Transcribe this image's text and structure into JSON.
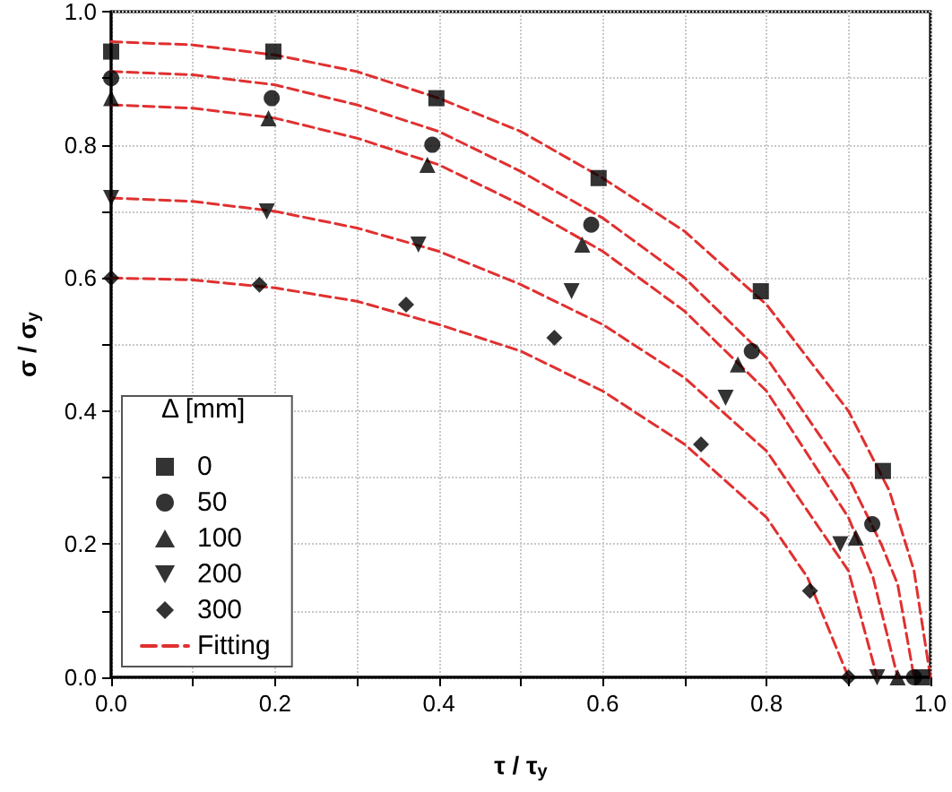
{
  "chart_data": {
    "type": "scatter",
    "xlabel": "τ / τ$_{y}$",
    "ylabel": "σ / σ$_{y}$",
    "legend_title": "Δ [mm]",
    "xlim": [
      0,
      1
    ],
    "ylim": [
      0,
      1
    ],
    "xticks": [
      {
        "value": 0,
        "label": "0.0"
      },
      0.2,
      0.4,
      0.6,
      0.8,
      {
        "value": 1,
        "label": "1.0"
      }
    ],
    "yticks": [
      {
        "value": 0,
        "label": "0.0"
      },
      0.2,
      0.4,
      0.6,
      0.8,
      {
        "value": 1,
        "label": "1.0"
      }
    ],
    "grid": true,
    "legend": "bottom left",
    "series": [
      {
        "name": "0",
        "color": "#000000",
        "marker": "square",
        "x": [
          0,
          0.198,
          0.397,
          0.595,
          0.793,
          0.942,
          0.99
        ],
        "values": [
          0.94,
          0.94,
          0.87,
          0.75,
          0.58,
          0.31,
          0
        ]
      },
      {
        "name": "50",
        "color": "#000000",
        "marker": "circle",
        "x": [
          0,
          0.196,
          0.392,
          0.586,
          0.782,
          0.929,
          0.98
        ],
        "values": [
          0.9,
          0.87,
          0.8,
          0.68,
          0.49,
          0.23,
          0
        ]
      },
      {
        "name": "100",
        "color": "#000000",
        "marker": "triangle",
        "x": [
          0,
          0.192,
          0.386,
          0.575,
          0.765,
          0.909,
          0.96
        ],
        "values": [
          0.87,
          0.84,
          0.77,
          0.65,
          0.47,
          0.21,
          0
        ]
      },
      {
        "name": "200",
        "color": "#000000",
        "marker": "triangle-down",
        "x": [
          0,
          0.19,
          0.375,
          0.562,
          0.75,
          0.89,
          0.935
        ],
        "values": [
          0.72,
          0.7,
          0.65,
          0.58,
          0.42,
          0.2,
          0
        ]
      },
      {
        "name": "300",
        "color": "#000000",
        "marker": "diamond",
        "x": [
          0,
          0.181,
          0.36,
          0.541,
          0.72,
          0.853,
          0.9
        ],
        "values": [
          0.6,
          0.59,
          0.56,
          0.51,
          0.35,
          0.13,
          0
        ]
      },
      {
        "name": "Fitting",
        "type": "line",
        "color": "#e03030",
        "line_style": "dashed",
        "marker": "none",
        "x": [
          0,
          0.1,
          0.2,
          0.3,
          0.4,
          0.5,
          0.6,
          0.7,
          0.8,
          0.9,
          0.95,
          0.98,
          1.0
        ],
        "values": [
          0.955,
          0.95,
          0.935,
          0.91,
          0.87,
          0.82,
          0.75,
          0.67,
          0.56,
          0.4,
          0.28,
          0.16,
          0
        ]
      },
      {
        "type": "line",
        "color": "#e03030",
        "line_style": "dashed",
        "marker": "none",
        "x": [
          0,
          0.1,
          0.2,
          0.3,
          0.4,
          0.5,
          0.6,
          0.7,
          0.8,
          0.9,
          0.94,
          0.96,
          0.98
        ],
        "values": [
          0.91,
          0.905,
          0.89,
          0.86,
          0.82,
          0.76,
          0.69,
          0.6,
          0.48,
          0.3,
          0.2,
          0.14,
          0
        ]
      },
      {
        "type": "line",
        "color": "#e03030",
        "line_style": "dashed",
        "marker": "none",
        "x": [
          0,
          0.1,
          0.2,
          0.3,
          0.4,
          0.5,
          0.6,
          0.7,
          0.8,
          0.9,
          0.93,
          0.96
        ],
        "values": [
          0.86,
          0.855,
          0.84,
          0.81,
          0.77,
          0.71,
          0.64,
          0.55,
          0.43,
          0.24,
          0.15,
          0
        ]
      },
      {
        "type": "line",
        "color": "#e03030",
        "line_style": "dashed",
        "marker": "none",
        "x": [
          0,
          0.1,
          0.2,
          0.3,
          0.4,
          0.5,
          0.6,
          0.7,
          0.8,
          0.9,
          0.935
        ],
        "values": [
          0.72,
          0.715,
          0.7,
          0.675,
          0.64,
          0.59,
          0.53,
          0.45,
          0.34,
          0.16,
          0
        ]
      },
      {
        "type": "line",
        "color": "#e03030",
        "line_style": "dashed",
        "marker": "none",
        "x": [
          0,
          0.1,
          0.2,
          0.3,
          0.4,
          0.5,
          0.6,
          0.7,
          0.8,
          0.85,
          0.9
        ],
        "values": [
          0.6,
          0.597,
          0.585,
          0.565,
          0.53,
          0.49,
          0.43,
          0.35,
          0.24,
          0.15,
          0
        ]
      }
    ]
  }
}
